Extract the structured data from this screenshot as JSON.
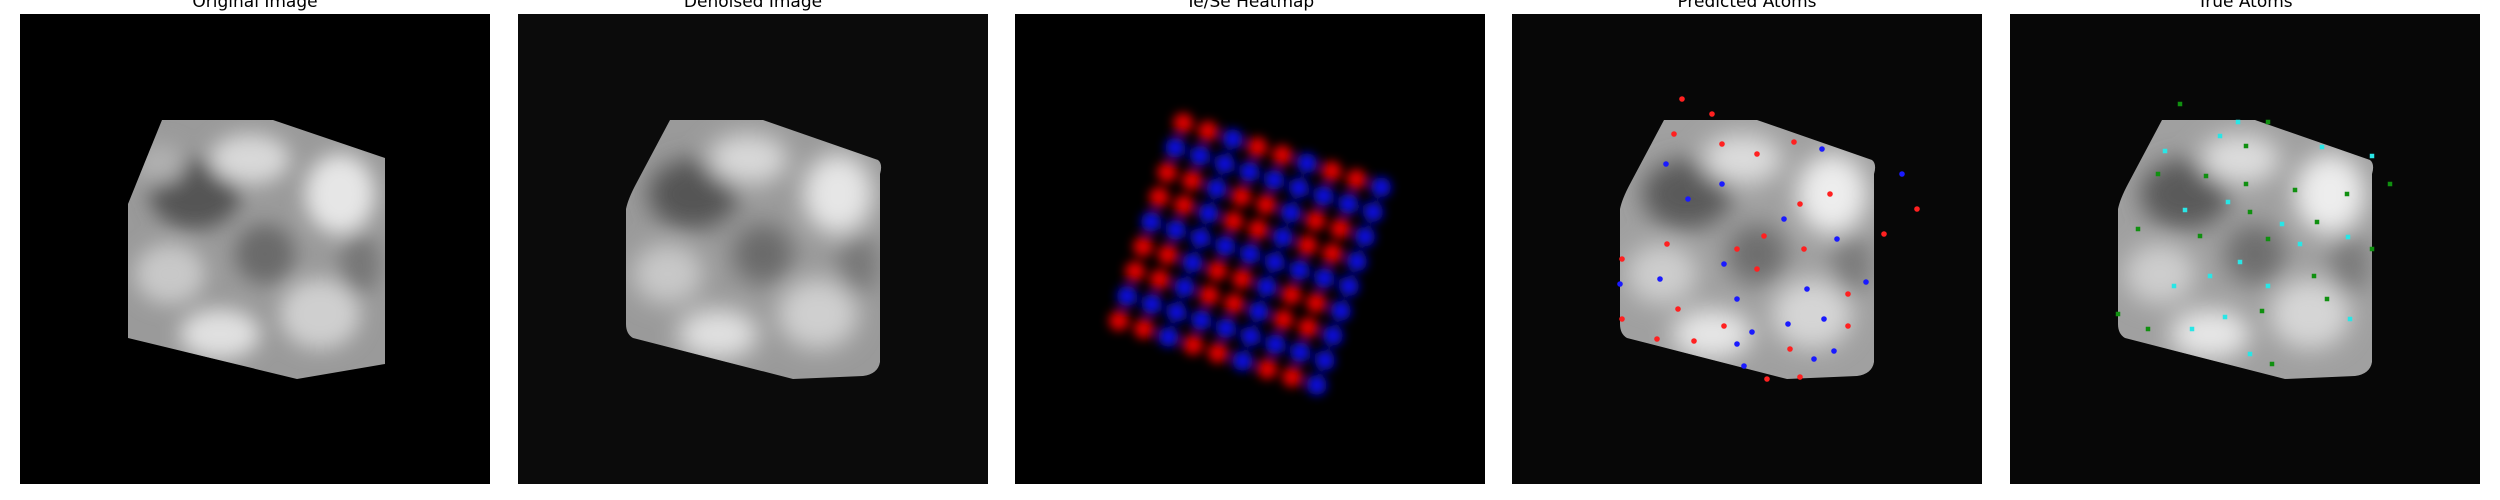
{
  "figure": {
    "panels": [
      {
        "title": "Original Image"
      },
      {
        "title": "Denoised Image"
      },
      {
        "title": "Te/Se Heatmap"
      },
      {
        "title": "Predicted Atoms"
      },
      {
        "title": "True Atoms"
      }
    ]
  },
  "colors": {
    "te": "#e00000",
    "se": "#1010e0",
    "predicted_te": "#ff2020",
    "predicted_se": "#1a1aff",
    "true_a": "#29e6e6",
    "true_b": "#109010"
  }
}
